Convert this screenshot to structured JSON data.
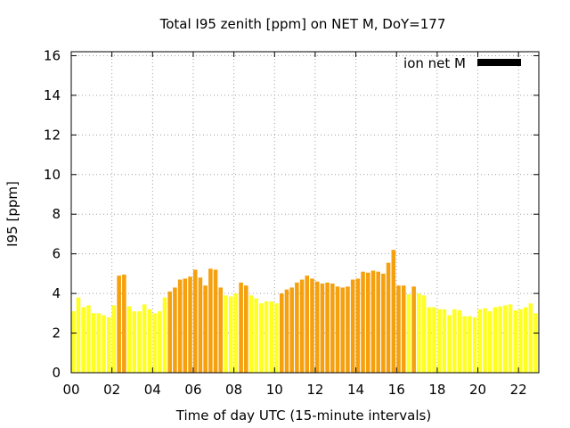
{
  "chart_data": {
    "type": "bar",
    "title": "Total I95 zenith [ppm] on NET M, DoY=177",
    "xlabel": "Time of day UTC (15-minute intervals)",
    "ylabel": "I95 [ppm]",
    "xlim": [
      0,
      23
    ],
    "ylim": [
      0,
      16.2
    ],
    "x_ticks": [
      "00",
      "02",
      "04",
      "06",
      "08",
      "10",
      "12",
      "14",
      "16",
      "18",
      "20",
      "22"
    ],
    "y_ticks": [
      "0",
      "2",
      "4",
      "6",
      "8",
      "10",
      "12",
      "14",
      "16"
    ],
    "grid": true,
    "legend": {
      "label": "ion net M",
      "color": "#000000",
      "position": "top-right"
    },
    "bar_width_hours": 0.2,
    "colors": {
      "low": "#ffff22",
      "high": "#f5a00f"
    },
    "x": [
      0.0,
      0.25,
      0.5,
      0.75,
      1.0,
      1.25,
      1.5,
      1.75,
      2.0,
      2.25,
      2.5,
      2.75,
      3.0,
      3.25,
      3.5,
      3.75,
      4.0,
      4.25,
      4.5,
      4.75,
      5.0,
      5.25,
      5.5,
      5.75,
      6.0,
      6.25,
      6.5,
      6.75,
      7.0,
      7.25,
      7.5,
      7.75,
      8.0,
      8.25,
      8.5,
      8.75,
      9.0,
      9.25,
      9.5,
      9.75,
      10.0,
      10.25,
      10.5,
      10.75,
      11.0,
      11.25,
      11.5,
      11.75,
      12.0,
      12.25,
      12.5,
      12.75,
      13.0,
      13.25,
      13.5,
      13.75,
      14.0,
      14.25,
      14.5,
      14.75,
      15.0,
      15.25,
      15.5,
      15.75,
      16.0,
      16.25,
      16.5,
      16.75,
      17.0,
      17.25,
      17.5,
      17.75,
      18.0,
      18.25,
      18.5,
      18.75,
      19.0,
      19.25,
      19.5,
      19.75,
      20.0,
      20.25,
      20.5,
      20.75,
      21.0,
      21.25,
      21.5,
      21.75,
      22.0,
      22.25,
      22.5,
      22.75
    ],
    "values": [
      3.1,
      3.8,
      3.3,
      3.4,
      3.0,
      3.0,
      2.9,
      2.8,
      3.4,
      4.9,
      4.95,
      3.35,
      3.1,
      3.1,
      3.45,
      3.2,
      3.0,
      3.1,
      3.8,
      4.1,
      4.3,
      4.7,
      4.75,
      4.85,
      5.2,
      4.8,
      4.4,
      5.25,
      5.2,
      4.3,
      3.9,
      3.85,
      4.0,
      4.55,
      4.4,
      3.9,
      3.75,
      3.5,
      3.6,
      3.6,
      3.5,
      4.0,
      4.2,
      4.3,
      4.55,
      4.7,
      4.9,
      4.75,
      4.6,
      4.5,
      4.55,
      4.5,
      4.35,
      4.3,
      4.35,
      4.7,
      4.75,
      5.1,
      5.05,
      5.15,
      5.1,
      5.0,
      5.55,
      6.2,
      4.4,
      4.4,
      3.95,
      4.35,
      4.0,
      3.9,
      3.3,
      3.3,
      3.2,
      3.2,
      2.9,
      3.2,
      3.15,
      2.85,
      2.85,
      2.8,
      3.2,
      3.25,
      3.1,
      3.3,
      3.35,
      3.4,
      3.45,
      3.15,
      3.2,
      3.3,
      3.5,
      3.0
    ],
    "color_level": [
      "low",
      "low",
      "low",
      "low",
      "low",
      "low",
      "low",
      "low",
      "low",
      "high",
      "high",
      "low",
      "low",
      "low",
      "low",
      "low",
      "low",
      "low",
      "low",
      "high",
      "high",
      "high",
      "high",
      "high",
      "high",
      "high",
      "high",
      "high",
      "high",
      "high",
      "low",
      "low",
      "low",
      "high",
      "high",
      "low",
      "low",
      "low",
      "low",
      "low",
      "low",
      "high",
      "high",
      "high",
      "high",
      "high",
      "high",
      "high",
      "high",
      "high",
      "high",
      "high",
      "high",
      "high",
      "high",
      "high",
      "high",
      "high",
      "high",
      "high",
      "high",
      "high",
      "high",
      "high",
      "high",
      "high",
      "low",
      "high",
      "low",
      "low",
      "low",
      "low",
      "low",
      "low",
      "low",
      "low",
      "low",
      "low",
      "low",
      "low",
      "low",
      "low",
      "low",
      "low",
      "low",
      "low",
      "low",
      "low",
      "low",
      "low",
      "low",
      "low"
    ]
  }
}
